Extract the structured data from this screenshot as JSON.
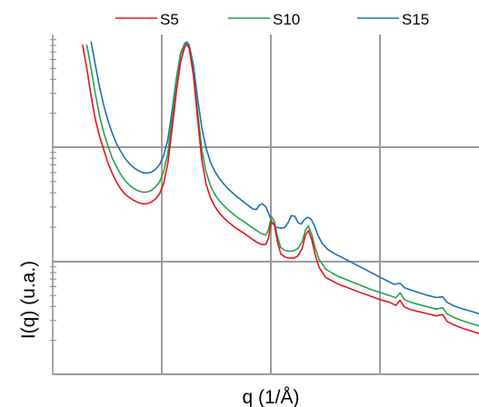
{
  "chart_data": {
    "type": "line",
    "title": "",
    "xlabel": "q (1/Å)",
    "ylabel": "I(q) (u.a.)",
    "x_tick_labels": [],
    "y_tick_labels": [],
    "yscale": "log",
    "grid": true,
    "legend_position": "top",
    "xlim": [
      0,
      100
    ],
    "ylim": [
      0,
      100
    ],
    "series": [
      {
        "name": "S5",
        "color": "#e8141c",
        "points": [
          [
            7,
            97
          ],
          [
            8,
            90
          ],
          [
            9,
            82
          ],
          [
            10,
            75
          ],
          [
            11,
            70
          ],
          [
            12,
            66
          ],
          [
            13,
            62
          ],
          [
            14,
            59
          ],
          [
            15,
            56.5
          ],
          [
            16,
            54.5
          ],
          [
            17,
            53
          ],
          [
            18,
            52
          ],
          [
            19,
            51.2
          ],
          [
            20,
            50.6
          ],
          [
            21,
            50.2
          ],
          [
            22,
            50.2
          ],
          [
            23,
            50.6
          ],
          [
            24,
            51.5
          ],
          [
            25,
            53
          ],
          [
            26,
            56
          ],
          [
            27,
            62
          ],
          [
            28,
            72
          ],
          [
            29,
            83
          ],
          [
            30,
            92
          ],
          [
            31,
            96.5
          ],
          [
            31.5,
            97
          ],
          [
            32,
            96
          ],
          [
            33,
            88
          ],
          [
            34,
            75
          ],
          [
            35,
            63
          ],
          [
            36,
            56
          ],
          [
            37,
            52
          ],
          [
            38,
            49.5
          ],
          [
            39,
            47.6
          ],
          [
            40,
            46.2
          ],
          [
            41,
            45
          ],
          [
            42,
            44
          ],
          [
            43,
            43
          ],
          [
            44,
            42.2
          ],
          [
            45,
            41.4
          ],
          [
            46,
            40.5
          ],
          [
            47,
            39.6
          ],
          [
            48,
            38.8
          ],
          [
            49,
            38.2
          ],
          [
            50,
            38.2
          ],
          [
            50.6,
            40
          ],
          [
            51.3,
            45
          ],
          [
            52,
            44
          ],
          [
            52.7,
            39
          ],
          [
            53.5,
            35.5
          ],
          [
            54.5,
            34.5
          ],
          [
            55.5,
            34.2
          ],
          [
            56.5,
            34.2
          ],
          [
            57.5,
            34.8
          ],
          [
            58.5,
            37
          ],
          [
            59.3,
            41
          ],
          [
            60,
            42.3
          ],
          [
            60.8,
            39.5
          ],
          [
            61.5,
            35.5
          ],
          [
            62.5,
            31.5
          ],
          [
            64,
            28.5
          ],
          [
            65.5,
            27.5
          ],
          [
            67,
            26.5
          ],
          [
            69,
            25.6
          ],
          [
            71,
            24.6
          ],
          [
            73,
            23.7
          ],
          [
            75,
            22.8
          ],
          [
            77,
            21.9
          ],
          [
            79,
            21.2
          ],
          [
            80.5,
            20.3
          ],
          [
            81.5,
            21.8
          ],
          [
            82.5,
            19.8
          ],
          [
            84,
            19
          ],
          [
            86,
            18.4
          ],
          [
            88,
            17.8
          ],
          [
            90,
            17.2
          ],
          [
            91.5,
            17.6
          ],
          [
            92.5,
            15.6
          ],
          [
            94,
            14.6
          ],
          [
            96,
            13.6
          ],
          [
            98,
            12.8
          ],
          [
            100,
            12
          ]
        ]
      },
      {
        "name": "S10",
        "color": "#2aa04a",
        "points": [
          [
            8,
            97
          ],
          [
            9,
            90
          ],
          [
            10,
            82.5
          ],
          [
            11,
            76
          ],
          [
            12,
            71
          ],
          [
            13,
            67
          ],
          [
            14,
            63.5
          ],
          [
            15,
            61
          ],
          [
            16,
            58.8
          ],
          [
            17,
            57
          ],
          [
            18,
            55.7
          ],
          [
            19,
            54.7
          ],
          [
            20,
            54
          ],
          [
            21,
            53.6
          ],
          [
            22,
            53.6
          ],
          [
            23,
            54
          ],
          [
            24,
            55
          ],
          [
            25,
            56.5
          ],
          [
            26,
            59.5
          ],
          [
            27,
            65
          ],
          [
            28,
            75
          ],
          [
            29,
            86
          ],
          [
            30,
            94
          ],
          [
            31,
            97
          ],
          [
            31.5,
            97.5
          ],
          [
            32,
            96.5
          ],
          [
            33,
            89
          ],
          [
            34,
            77
          ],
          [
            35,
            66
          ],
          [
            36,
            59.5
          ],
          [
            37,
            55.5
          ],
          [
            38,
            53
          ],
          [
            39,
            51.2
          ],
          [
            40,
            49.8
          ],
          [
            41,
            48.6
          ],
          [
            42,
            47.5
          ],
          [
            43,
            46.5
          ],
          [
            44,
            45.6
          ],
          [
            45,
            44.8
          ],
          [
            46,
            43.9
          ],
          [
            47,
            43
          ],
          [
            48,
            42.2
          ],
          [
            49,
            41.4
          ],
          [
            50,
            41
          ],
          [
            50.6,
            42.5
          ],
          [
            51.3,
            46.5
          ],
          [
            52,
            45
          ],
          [
            52.7,
            40.5
          ],
          [
            53.5,
            37.3
          ],
          [
            54.5,
            36.5
          ],
          [
            55.5,
            36.2
          ],
          [
            56.5,
            36.3
          ],
          [
            57.5,
            37
          ],
          [
            58.5,
            39
          ],
          [
            59.3,
            42.5
          ],
          [
            60,
            43.6
          ],
          [
            60.8,
            41
          ],
          [
            61.5,
            37.5
          ],
          [
            62.5,
            33.8
          ],
          [
            64,
            31
          ],
          [
            65.5,
            29.8
          ],
          [
            67,
            28.8
          ],
          [
            69,
            27.8
          ],
          [
            71,
            26.8
          ],
          [
            73,
            25.8
          ],
          [
            75,
            24.8
          ],
          [
            77,
            24
          ],
          [
            79,
            23.2
          ],
          [
            80.5,
            22.5
          ],
          [
            81.5,
            24
          ],
          [
            82.5,
            22
          ],
          [
            84,
            21.2
          ],
          [
            86,
            20.5
          ],
          [
            88,
            19.8
          ],
          [
            90,
            19.2
          ],
          [
            91.5,
            19.6
          ],
          [
            92.5,
            17.8
          ],
          [
            94,
            16.8
          ],
          [
            96,
            15.8
          ],
          [
            98,
            15
          ],
          [
            100,
            14.2
          ]
        ]
      },
      {
        "name": "S15",
        "color": "#1f6fb4",
        "points": [
          [
            9,
            98
          ],
          [
            10,
            91
          ],
          [
            11,
            84.5
          ],
          [
            12,
            79
          ],
          [
            13,
            74.5
          ],
          [
            14,
            70.8
          ],
          [
            15,
            67.8
          ],
          [
            16,
            65.5
          ],
          [
            17,
            63.5
          ],
          [
            18,
            62
          ],
          [
            19,
            60.8
          ],
          [
            20,
            60
          ],
          [
            21,
            59.4
          ],
          [
            22,
            59.2
          ],
          [
            23,
            59.4
          ],
          [
            24,
            60.2
          ],
          [
            25,
            61.6
          ],
          [
            26,
            64.2
          ],
          [
            27,
            69
          ],
          [
            28,
            77.5
          ],
          [
            29,
            87
          ],
          [
            30,
            94.5
          ],
          [
            31,
            97.5
          ],
          [
            31.5,
            97.8
          ],
          [
            32,
            97
          ],
          [
            33,
            91
          ],
          [
            34,
            81
          ],
          [
            35,
            72.5
          ],
          [
            36,
            66.5
          ],
          [
            37,
            62.5
          ],
          [
            38,
            59.8
          ],
          [
            39,
            57.8
          ],
          [
            40,
            56.2
          ],
          [
            41,
            54.8
          ],
          [
            42,
            53.6
          ],
          [
            43,
            52.5
          ],
          [
            44,
            51.5
          ],
          [
            45,
            50.5
          ],
          [
            46,
            49.6
          ],
          [
            47,
            48.6
          ],
          [
            47.8,
            48.5
          ],
          [
            48.5,
            49.8
          ],
          [
            49.2,
            50.2
          ],
          [
            50,
            49.3
          ],
          [
            50.8,
            46.8
          ],
          [
            51.6,
            44.3
          ],
          [
            52.5,
            43.3
          ],
          [
            53.5,
            43
          ],
          [
            54.5,
            43.3
          ],
          [
            55.2,
            44.6
          ],
          [
            56,
            46.7
          ],
          [
            56.8,
            46.5
          ],
          [
            57.6,
            44.6
          ],
          [
            58.3,
            44.2
          ],
          [
            59,
            45.5
          ],
          [
            59.8,
            46.2
          ],
          [
            60.6,
            45.7
          ],
          [
            61.3,
            44
          ],
          [
            62.2,
            41
          ],
          [
            63.2,
            38.5
          ],
          [
            64.5,
            36.8
          ],
          [
            66,
            35.6
          ],
          [
            68,
            34.3
          ],
          [
            70,
            33
          ],
          [
            72,
            31.7
          ],
          [
            74,
            30.4
          ],
          [
            76,
            29.1
          ],
          [
            78,
            27.8
          ],
          [
            80,
            26.5
          ],
          [
            81.5,
            26.8
          ],
          [
            82.5,
            25.5
          ],
          [
            84,
            24.8
          ],
          [
            86,
            24
          ],
          [
            88,
            23.2
          ],
          [
            90,
            22.6
          ],
          [
            91.5,
            22.8
          ],
          [
            92.5,
            21.2
          ],
          [
            94,
            20.2
          ],
          [
            96,
            19.3
          ],
          [
            98,
            18.6
          ],
          [
            100,
            17.8
          ]
        ]
      }
    ]
  }
}
